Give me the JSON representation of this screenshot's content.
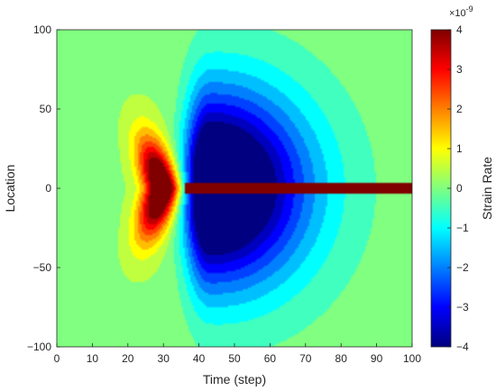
{
  "chart_data": {
    "type": "heatmap",
    "title": "",
    "xlabel": "Time (step)",
    "ylabel": "Location",
    "xlim": [
      0,
      100
    ],
    "ylim": [
      -100,
      100
    ],
    "x_ticks": [
      0,
      10,
      20,
      30,
      40,
      50,
      60,
      70,
      80,
      90,
      100
    ],
    "y_ticks": [
      -100,
      -50,
      0,
      50,
      100
    ],
    "y_tick_labels": [
      "−100",
      "−50",
      "0",
      "50",
      "100"
    ],
    "colorbar": {
      "label": "Strain Rate",
      "range": [
        -4,
        4
      ],
      "ticks": [
        -4,
        -3,
        -2,
        -1,
        0,
        1,
        2,
        3,
        4
      ],
      "tick_labels": [
        "−4",
        "−3",
        "−2",
        "−1",
        "0",
        "1",
        "2",
        "3",
        "4"
      ],
      "exponent_base": "×10",
      "exponent_power": "-9",
      "colormap": "jet"
    },
    "features": {
      "positive_lobe": {
        "time": 30,
        "location": 0,
        "peak_value": 4.0
      },
      "negative_lobe": {
        "time": 43,
        "location": 0,
        "peak_value": -4.0
      },
      "positive_band": {
        "time_start": 36,
        "time_end": 100,
        "location": 0,
        "value": 4.0
      }
    }
  },
  "colors": {
    "jet": [
      "#00007f",
      "#0000ff",
      "#007fff",
      "#00ffff",
      "#7fff7f",
      "#ffff00",
      "#ff7f00",
      "#ff0000",
      "#7f0000"
    ]
  }
}
